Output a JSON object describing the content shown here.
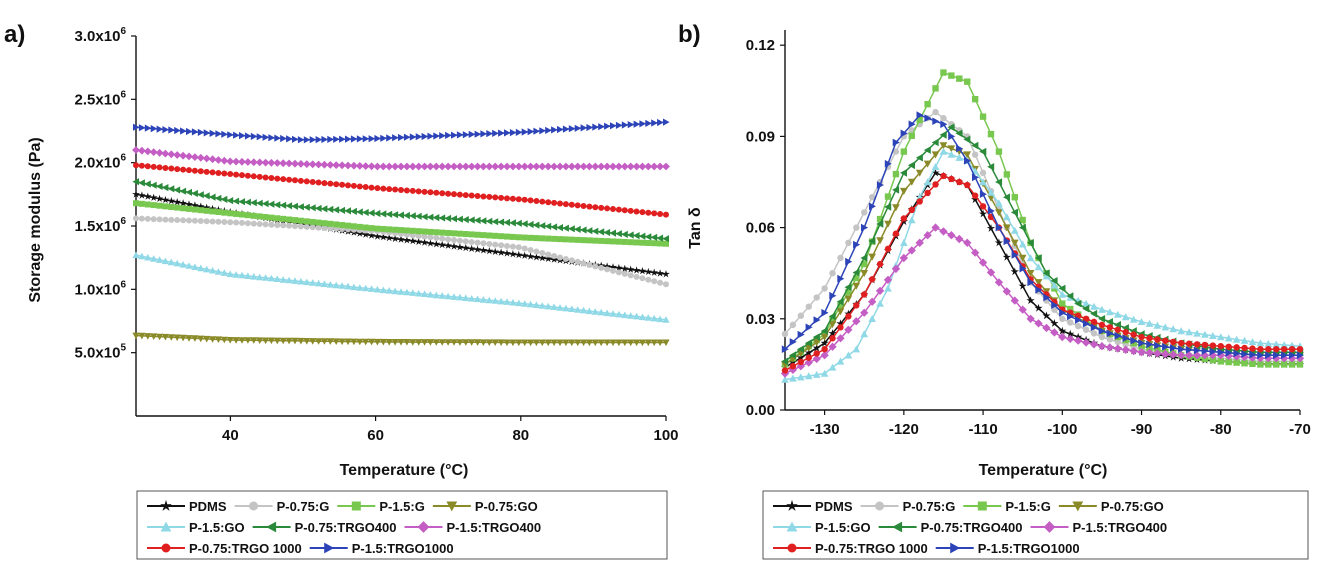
{
  "legend": {
    "entries": [
      "PDMS",
      "P-0.75:G",
      "P-1.5:G",
      "P-0.75:GO",
      "P-1.5:GO",
      "P-0.75:TRGO400",
      "P-1.5:TRGO400",
      "P-0.75:TRGO 1000",
      "P-1.5:TRGO1000"
    ],
    "rows": [
      [
        0,
        1,
        2,
        3
      ],
      [
        4,
        5,
        6
      ],
      [
        7,
        8
      ]
    ]
  },
  "series_style": [
    {
      "color": "#111111",
      "marker": "star"
    },
    {
      "color": "#c4c4c4",
      "marker": "circle"
    },
    {
      "color": "#78c850",
      "marker": "square"
    },
    {
      "color": "#8a8a28",
      "marker": "triangle-down"
    },
    {
      "color": "#8fd8e6",
      "marker": "triangle-up"
    },
    {
      "color": "#2a8a3a",
      "marker": "triangle-left"
    },
    {
      "color": "#c45ec4",
      "marker": "diamond"
    },
    {
      "color": "#e02020",
      "marker": "circle"
    },
    {
      "color": "#2c44b8",
      "marker": "triangle-right"
    }
  ],
  "chart_data": [
    {
      "panel_label": "a)",
      "type": "line",
      "xlabel": "Temperature (°C)",
      "ylabel": "Storage modulus (Pa)",
      "xlim": [
        27,
        100
      ],
      "ylim": [
        0,
        3000000
      ],
      "xticks": [
        {
          "v": 40,
          "label": "40"
        },
        {
          "v": 60,
          "label": "60"
        },
        {
          "v": 80,
          "label": "80"
        },
        {
          "v": 100,
          "label": "100"
        }
      ],
      "yticks": [
        {
          "v": 500000,
          "mant": "5.0x10",
          "exp": "5"
        },
        {
          "v": 1000000,
          "mant": "1.0x10",
          "exp": "6"
        },
        {
          "v": 1500000,
          "mant": "1.5x10",
          "exp": "6"
        },
        {
          "v": 2000000,
          "mant": "2.0x10",
          "exp": "6"
        },
        {
          "v": 2500000,
          "mant": "2.5x10",
          "exp": "6"
        },
        {
          "v": 3000000,
          "mant": "3.0x10",
          "exp": "6"
        }
      ],
      "series": [
        {
          "name": "PDMS",
          "x": [
            27,
            40,
            60,
            80,
            100
          ],
          "y": [
            1750000,
            1610000,
            1420000,
            1270000,
            1120000
          ]
        },
        {
          "name": "P-0.75:G",
          "x": [
            27,
            40,
            60,
            80,
            100
          ],
          "y": [
            1560000,
            1530000,
            1460000,
            1330000,
            1040000
          ]
        },
        {
          "name": "P-1.5:G",
          "x": [
            27,
            40,
            60,
            80,
            100
          ],
          "y": [
            1680000,
            1600000,
            1480000,
            1410000,
            1360000
          ]
        },
        {
          "name": "P-0.75:GO",
          "x": [
            27,
            40,
            60,
            80,
            100
          ],
          "y": [
            635000,
            600000,
            585000,
            580000,
            580000
          ]
        },
        {
          "name": "P-1.5:GO",
          "x": [
            27,
            40,
            60,
            80,
            100
          ],
          "y": [
            1270000,
            1120000,
            1000000,
            890000,
            760000
          ]
        },
        {
          "name": "P-0.75:TRGO400",
          "x": [
            27,
            40,
            60,
            80,
            100
          ],
          "y": [
            1850000,
            1700000,
            1600000,
            1520000,
            1400000
          ]
        },
        {
          "name": "P-1.5:TRGO400",
          "x": [
            27,
            40,
            60,
            80,
            100
          ],
          "y": [
            2100000,
            2010000,
            1970000,
            1970000,
            1970000
          ]
        },
        {
          "name": "P-0.75:TRGO 1000",
          "x": [
            27,
            40,
            60,
            80,
            100
          ],
          "y": [
            1980000,
            1910000,
            1800000,
            1710000,
            1590000
          ]
        },
        {
          "name": "P-1.5:TRGO1000",
          "x": [
            27,
            40,
            50,
            60,
            80,
            100
          ],
          "y": [
            2280000,
            2220000,
            2180000,
            2190000,
            2240000,
            2320000
          ]
        }
      ]
    },
    {
      "panel_label": "b)",
      "type": "line",
      "xlabel": "Temperature (°C)",
      "ylabel": "Tan δ",
      "xlim": [
        -135,
        -70
      ],
      "ylim": [
        0,
        0.125
      ],
      "xticks": [
        {
          "v": -130,
          "label": "-130"
        },
        {
          "v": -120,
          "label": "-120"
        },
        {
          "v": -110,
          "label": "-110"
        },
        {
          "v": -100,
          "label": "-100"
        },
        {
          "v": -90,
          "label": "-90"
        },
        {
          "v": -80,
          "label": "-80"
        },
        {
          "v": -70,
          "label": "-70"
        }
      ],
      "yticks": [
        {
          "v": 0,
          "label": "0.00"
        },
        {
          "v": 0.03,
          "label": "0.03"
        },
        {
          "v": 0.06,
          "label": "0.06"
        },
        {
          "v": 0.09,
          "label": "0.09"
        },
        {
          "v": 0.12,
          "label": "0.12"
        }
      ],
      "series": [
        {
          "name": "PDMS",
          "x": [
            -135,
            -130,
            -125,
            -120,
            -116,
            -112,
            -108,
            -104,
            -100,
            -95,
            -90,
            -85,
            -80,
            -75,
            -70
          ],
          "y": [
            0.014,
            0.022,
            0.038,
            0.062,
            0.078,
            0.074,
            0.055,
            0.036,
            0.026,
            0.021,
            0.019,
            0.017,
            0.016,
            0.015,
            0.015
          ]
        },
        {
          "name": "P-0.75:G",
          "x": [
            -135,
            -130,
            -125,
            -120,
            -116,
            -112,
            -108,
            -104,
            -100,
            -95,
            -90,
            -85,
            -80,
            -75,
            -70
          ],
          "y": [
            0.025,
            0.04,
            0.065,
            0.09,
            0.098,
            0.09,
            0.066,
            0.042,
            0.03,
            0.024,
            0.02,
            0.018,
            0.017,
            0.016,
            0.016
          ]
        },
        {
          "name": "P-1.5:G",
          "x": [
            -135,
            -130,
            -125,
            -120,
            -115,
            -112,
            -108,
            -104,
            -100,
            -95,
            -90,
            -85,
            -80,
            -75,
            -70
          ],
          "y": [
            0.015,
            0.025,
            0.048,
            0.085,
            0.111,
            0.108,
            0.085,
            0.055,
            0.035,
            0.026,
            0.021,
            0.018,
            0.016,
            0.015,
            0.015
          ]
        },
        {
          "name": "P-0.75:GO",
          "x": [
            -135,
            -130,
            -125,
            -120,
            -115,
            -112,
            -108,
            -104,
            -100,
            -95,
            -90,
            -85,
            -80,
            -75,
            -70
          ],
          "y": [
            0.015,
            0.024,
            0.045,
            0.072,
            0.087,
            0.084,
            0.065,
            0.045,
            0.033,
            0.026,
            0.022,
            0.02,
            0.019,
            0.018,
            0.018
          ]
        },
        {
          "name": "P-1.5:GO",
          "x": [
            -135,
            -130,
            -126,
            -122,
            -118,
            -115,
            -112,
            -108,
            -104,
            -100,
            -95,
            -90,
            -85,
            -80,
            -75,
            -70
          ],
          "y": [
            0.01,
            0.012,
            0.02,
            0.04,
            0.07,
            0.085,
            0.082,
            0.068,
            0.05,
            0.038,
            0.033,
            0.029,
            0.026,
            0.024,
            0.022,
            0.021
          ]
        },
        {
          "name": "P-0.75:TRGO400",
          "x": [
            -135,
            -130,
            -125,
            -120,
            -114,
            -110,
            -106,
            -102,
            -98,
            -95,
            -90,
            -85,
            -80,
            -75,
            -70
          ],
          "y": [
            0.016,
            0.026,
            0.05,
            0.078,
            0.093,
            0.085,
            0.065,
            0.045,
            0.035,
            0.03,
            0.025,
            0.022,
            0.02,
            0.019,
            0.019
          ]
        },
        {
          "name": "P-1.5:TRGO400",
          "x": [
            -135,
            -130,
            -125,
            -120,
            -116,
            -112,
            -108,
            -104,
            -100,
            -95,
            -90,
            -85,
            -80,
            -75,
            -70
          ],
          "y": [
            0.012,
            0.018,
            0.032,
            0.05,
            0.06,
            0.055,
            0.042,
            0.03,
            0.024,
            0.021,
            0.019,
            0.018,
            0.018,
            0.017,
            0.017
          ]
        },
        {
          "name": "P-0.75:TRGO 1000",
          "x": [
            -135,
            -130,
            -125,
            -120,
            -115,
            -112,
            -108,
            -104,
            -100,
            -95,
            -90,
            -85,
            -80,
            -75,
            -70
          ],
          "y": [
            0.013,
            0.02,
            0.038,
            0.063,
            0.077,
            0.074,
            0.06,
            0.043,
            0.033,
            0.028,
            0.024,
            0.022,
            0.021,
            0.02,
            0.02
          ]
        },
        {
          "name": "P-1.5:TRGO1000",
          "x": [
            -135,
            -130,
            -125,
            -121,
            -118,
            -115,
            -112,
            -108,
            -104,
            -100,
            -95,
            -90,
            -85,
            -80,
            -75,
            -70
          ],
          "y": [
            0.02,
            0.032,
            0.06,
            0.088,
            0.097,
            0.094,
            0.082,
            0.06,
            0.042,
            0.032,
            0.026,
            0.022,
            0.02,
            0.019,
            0.018,
            0.018
          ]
        }
      ]
    }
  ]
}
